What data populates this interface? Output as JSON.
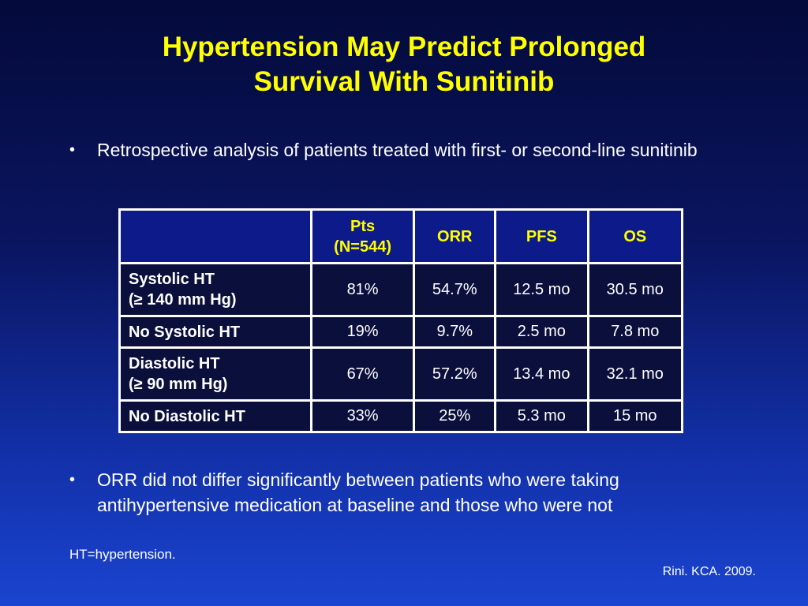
{
  "title": {
    "line1": "Hypertension May Predict Prolonged",
    "line2": "Survival With Sunitinib"
  },
  "bullets": [
    "Retrospective analysis of patients treated with first- or second-line sunitinib",
    "ORR did not differ significantly between patients who were taking antihypertensive medication at baseline and those who were not"
  ],
  "bullet_glyph": "•",
  "table": {
    "headers": {
      "pts_line1": "Pts",
      "pts_line2": "(N=544)",
      "orr": "ORR",
      "pfs": "PFS",
      "os": "OS"
    },
    "rows": [
      {
        "label1": "Systolic HT",
        "label2": "(≥ 140 mm Hg)",
        "pts": "81%",
        "orr": "54.7%",
        "pfs": "12.5 mo",
        "os": "30.5 mo"
      },
      {
        "label1": "No Systolic HT",
        "pts": "19%",
        "orr": "9.7%",
        "pfs": "2.5 mo",
        "os": "7.8 mo"
      },
      {
        "label1": "Diastolic HT",
        "label2": "(≥ 90 mm Hg)",
        "pts": "67%",
        "orr": "57.2%",
        "pfs": "13.4 mo",
        "os": "32.1 mo"
      },
      {
        "label1": "No Diastolic HT",
        "pts": "33%",
        "orr": "25%",
        "pfs": "5.3 mo",
        "os": "15 mo"
      }
    ]
  },
  "footnote": "HT=hypertension.",
  "citation": "Rini. KCA. 2009.",
  "colors": {
    "title": "#ffff00",
    "header_text": "#ffff00",
    "text": "#ffffff"
  }
}
